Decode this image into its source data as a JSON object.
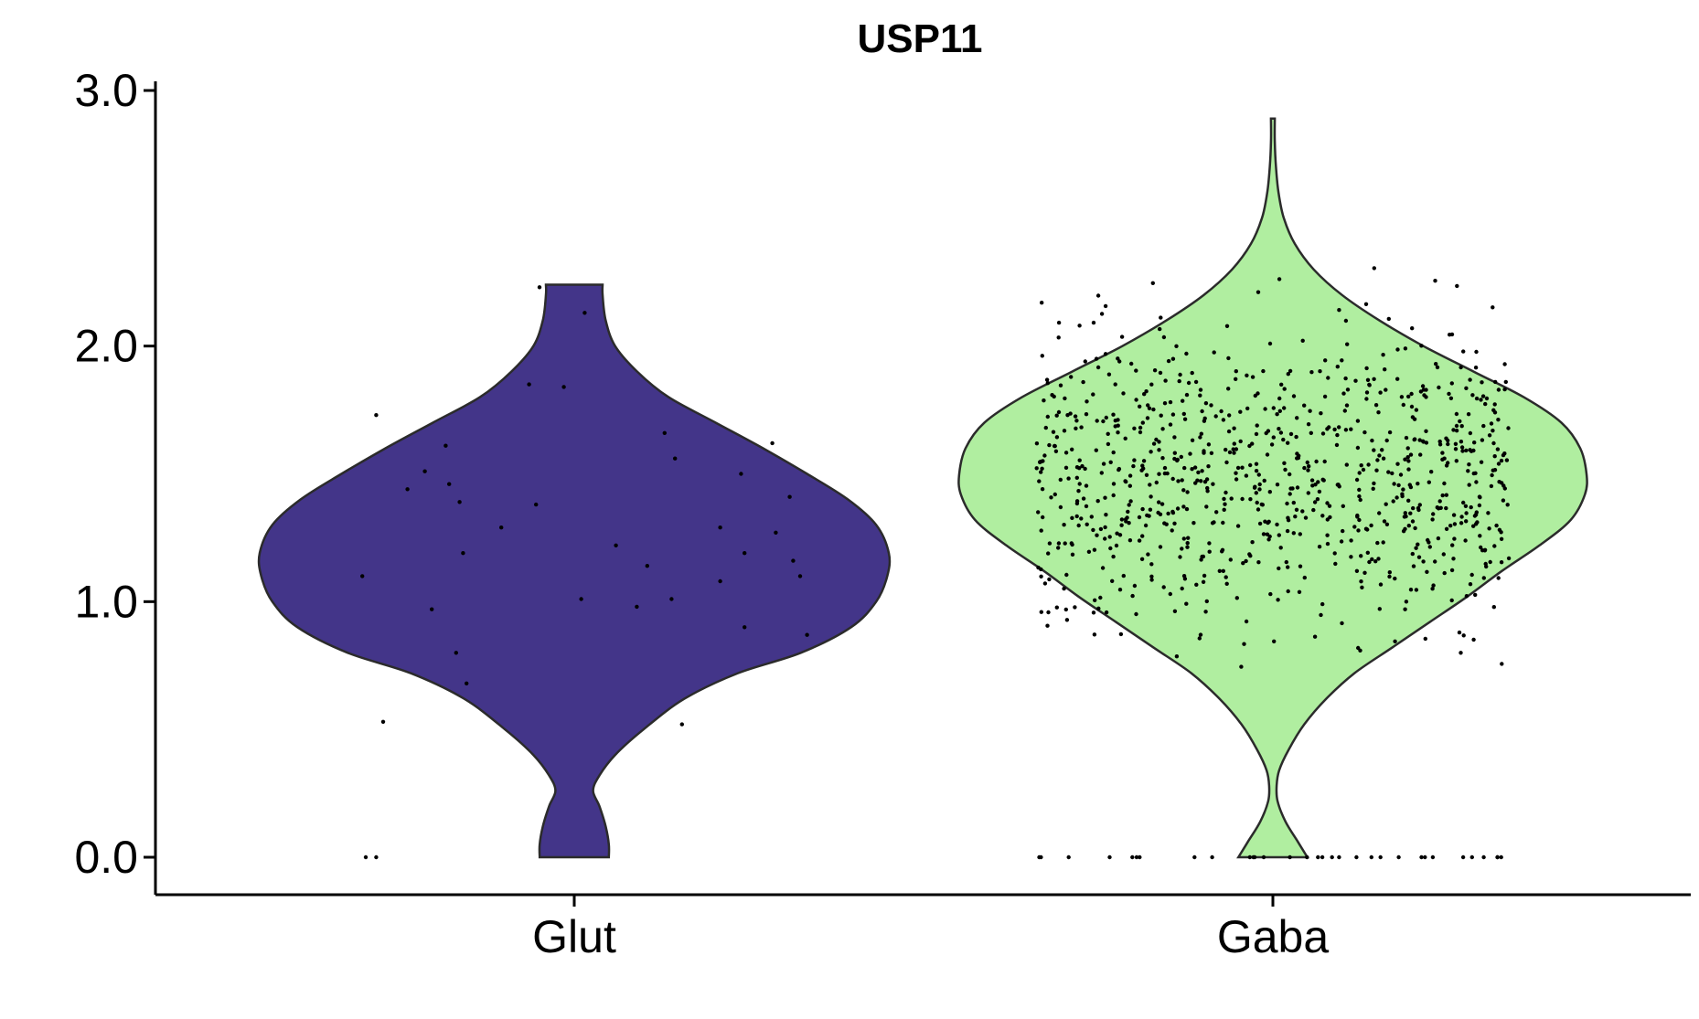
{
  "chart_data": {
    "type": "violin",
    "title": "USP11",
    "xlabel": "",
    "ylabel": "",
    "ylim": [
      -0.15,
      3.05
    ],
    "y_ticks": [
      {
        "value": 0.0,
        "label": "0.0"
      },
      {
        "value": 1.0,
        "label": "1.0"
      },
      {
        "value": 2.0,
        "label": "2.0"
      },
      {
        "value": 3.0,
        "label": "3.0"
      }
    ],
    "categories": [
      "Glut",
      "Gaba"
    ],
    "grid": false,
    "legend": "none",
    "groups": [
      {
        "category": "Glut",
        "color": "#433589",
        "y_range": [
          0.0,
          2.24
        ],
        "density_profile": [
          [
            0.0,
            0.11
          ],
          [
            0.05,
            0.11
          ],
          [
            0.12,
            0.1
          ],
          [
            0.2,
            0.08
          ],
          [
            0.26,
            0.06
          ],
          [
            0.32,
            0.08
          ],
          [
            0.4,
            0.13
          ],
          [
            0.5,
            0.22
          ],
          [
            0.62,
            0.35
          ],
          [
            0.72,
            0.52
          ],
          [
            0.8,
            0.72
          ],
          [
            0.9,
            0.88
          ],
          [
            1.0,
            0.96
          ],
          [
            1.1,
            0.995
          ],
          [
            1.19,
            1.0
          ],
          [
            1.3,
            0.96
          ],
          [
            1.4,
            0.87
          ],
          [
            1.5,
            0.74
          ],
          [
            1.6,
            0.6
          ],
          [
            1.7,
            0.45
          ],
          [
            1.8,
            0.3
          ],
          [
            1.9,
            0.2
          ],
          [
            2.0,
            0.13
          ],
          [
            2.1,
            0.1
          ],
          [
            2.2,
            0.09
          ],
          [
            2.24,
            0.09
          ]
        ],
        "points": [
          [
            -0.6,
            0.0
          ],
          [
            -0.57,
            0.0
          ],
          [
            -0.61,
            1.1
          ],
          [
            -0.55,
            0.53
          ],
          [
            -0.57,
            1.73
          ],
          [
            -0.48,
            1.44
          ],
          [
            -0.43,
            1.51
          ],
          [
            -0.41,
            0.97
          ],
          [
            -0.37,
            1.61
          ],
          [
            -0.36,
            1.46
          ],
          [
            -0.33,
            1.39
          ],
          [
            -0.32,
            1.19
          ],
          [
            -0.34,
            0.8
          ],
          [
            -0.31,
            0.68
          ],
          [
            -0.21,
            1.29
          ],
          [
            -0.13,
            1.85
          ],
          [
            -0.11,
            1.38
          ],
          [
            -0.1,
            2.23
          ],
          [
            -0.03,
            1.84
          ],
          [
            0.02,
            1.01
          ],
          [
            0.03,
            2.13
          ],
          [
            0.12,
            1.22
          ],
          [
            0.18,
            0.98
          ],
          [
            0.21,
            1.14
          ],
          [
            0.26,
            1.66
          ],
          [
            0.28,
            1.01
          ],
          [
            0.29,
            1.56
          ],
          [
            0.31,
            0.52
          ],
          [
            0.42,
            1.08
          ],
          [
            0.42,
            1.29
          ],
          [
            0.48,
            1.5
          ],
          [
            0.49,
            0.9
          ],
          [
            0.49,
            1.19
          ],
          [
            0.57,
            1.62
          ],
          [
            0.58,
            1.27
          ],
          [
            0.62,
            1.41
          ],
          [
            0.63,
            1.16
          ],
          [
            0.65,
            1.1
          ],
          [
            0.67,
            0.87
          ]
        ]
      },
      {
        "category": "Gaba",
        "color": "#b0eea0",
        "y_range": [
          0.0,
          2.89
        ],
        "density_profile": [
          [
            0.0,
            0.11
          ],
          [
            0.06,
            0.08
          ],
          [
            0.14,
            0.04
          ],
          [
            0.22,
            0.015
          ],
          [
            0.28,
            0.012
          ],
          [
            0.34,
            0.02
          ],
          [
            0.42,
            0.05
          ],
          [
            0.52,
            0.1
          ],
          [
            0.62,
            0.17
          ],
          [
            0.72,
            0.26
          ],
          [
            0.82,
            0.38
          ],
          [
            0.92,
            0.5
          ],
          [
            1.02,
            0.62
          ],
          [
            1.12,
            0.73
          ],
          [
            1.22,
            0.85
          ],
          [
            1.32,
            0.95
          ],
          [
            1.42,
            0.995
          ],
          [
            1.5,
            1.0
          ],
          [
            1.6,
            0.98
          ],
          [
            1.7,
            0.92
          ],
          [
            1.8,
            0.8
          ],
          [
            1.9,
            0.64
          ],
          [
            2.0,
            0.48
          ],
          [
            2.1,
            0.34
          ],
          [
            2.2,
            0.22
          ],
          [
            2.3,
            0.13
          ],
          [
            2.4,
            0.07
          ],
          [
            2.5,
            0.035
          ],
          [
            2.6,
            0.018
          ],
          [
            2.7,
            0.01
          ],
          [
            2.8,
            0.006
          ],
          [
            2.89,
            0.006
          ]
        ],
        "point_count": 900
      }
    ]
  }
}
